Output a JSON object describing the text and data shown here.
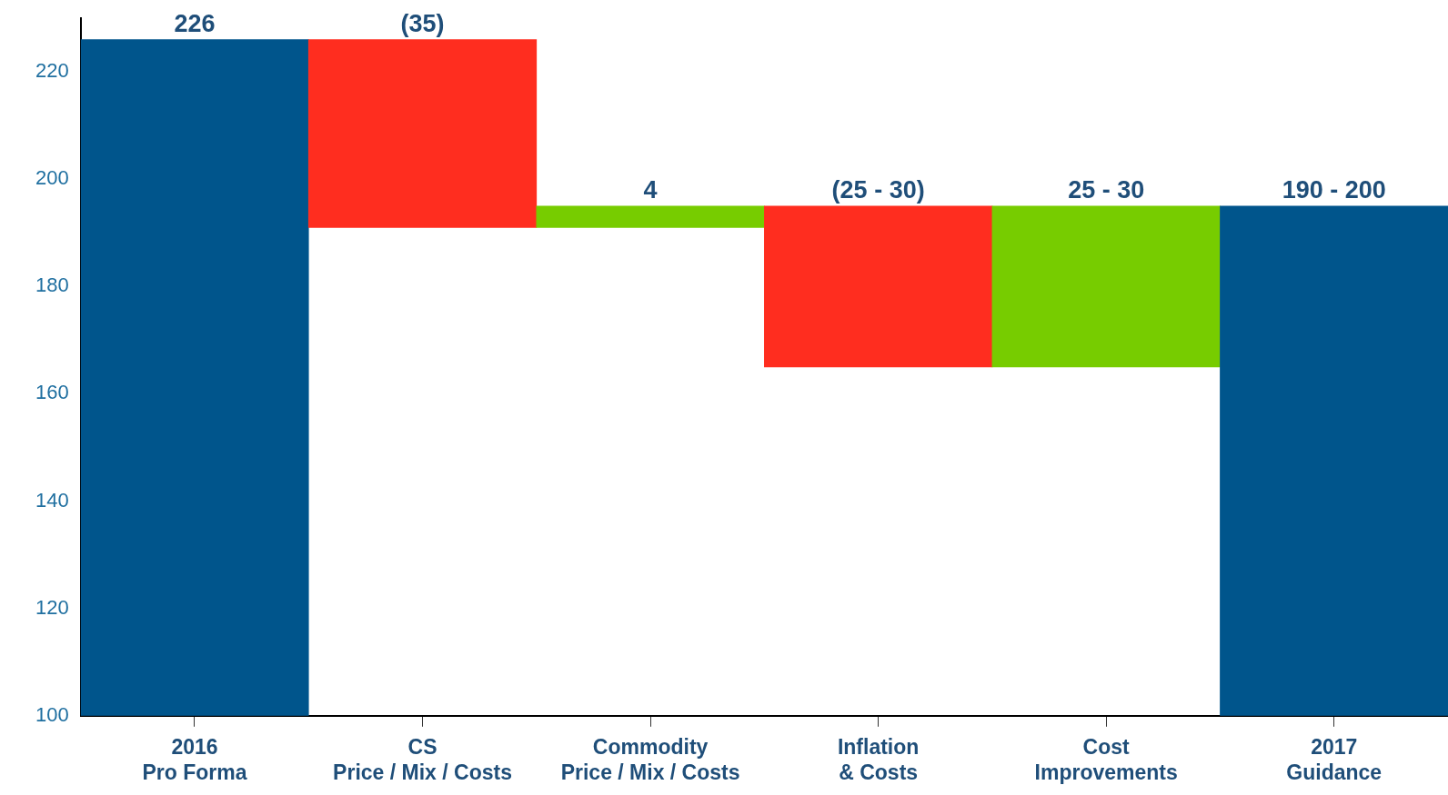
{
  "chart_data": {
    "type": "bar",
    "categories": [
      "2016\nPro Forma",
      "CS\nPrice / Mix / Costs",
      "Commodity\nPrice / Mix / Costs",
      "Inflation\n& Costs",
      "Cost\nImprovements",
      "2017\nGuidance"
    ],
    "values": [
      126,
      -35,
      4,
      -30,
      30,
      95
    ],
    "base": [
      100,
      226,
      191,
      195,
      165,
      100
    ],
    "colors": [
      "#00558c",
      "#ff2d1f",
      "#77cc00",
      "#ff2d1f",
      "#77cc00",
      "#00558c"
    ],
    "value_labels": [
      "226",
      "(35)",
      "4",
      null,
      null,
      null
    ],
    "annotations": [
      {
        "text": "(25 - 30)",
        "x": "Inflation\n& Costs",
        "y": 195
      },
      {
        "text": "25 - 30",
        "x": "Cost\nImprovements",
        "y": 195
      },
      {
        "text": "190 - 200",
        "x": "2017\nGuidance",
        "y": 195
      }
    ],
    "ylim": [
      100,
      230
    ],
    "yticks": [
      100,
      120,
      140,
      160,
      180,
      200,
      220
    ],
    "grid": false,
    "legend": false
  }
}
